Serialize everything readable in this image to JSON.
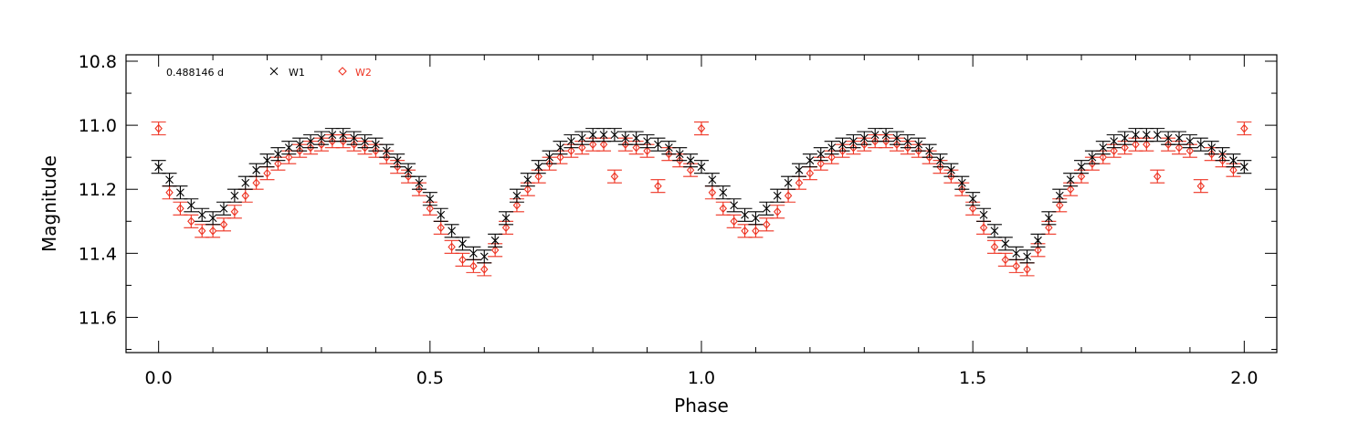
{
  "chart_data": {
    "type": "scatter",
    "xlabel": "Phase",
    "ylabel": "Magnitude",
    "xlim": [
      -0.06,
      2.06
    ],
    "ylim": [
      11.71,
      10.78
    ],
    "y_inverted": true,
    "x_ticks": [
      "0.0",
      "0.5",
      "1.0",
      "1.5",
      "2.0"
    ],
    "x_tick_values": [
      0.0,
      0.5,
      1.0,
      1.5,
      2.0
    ],
    "x_minor_step": 0.1,
    "y_ticks": [
      "10.8",
      "11.0",
      "11.2",
      "11.4",
      "11.6"
    ],
    "y_tick_values": [
      10.8,
      11.0,
      11.2,
      11.4,
      11.6
    ],
    "y_minor_step": 0.1,
    "grid": false,
    "legend_placement": "top-left",
    "period_label": "0.488146 d",
    "error_bar_halfwidth": 0.02,
    "series": [
      {
        "name": "W1",
        "marker": "x",
        "color": "#000000",
        "x": [
          0.0,
          0.02,
          0.04,
          0.06,
          0.08,
          0.1,
          0.12,
          0.14,
          0.16,
          0.18,
          0.2,
          0.22,
          0.24,
          0.26,
          0.28,
          0.3,
          0.32,
          0.34,
          0.36,
          0.38,
          0.4,
          0.42,
          0.44,
          0.46,
          0.48,
          0.5,
          0.52,
          0.54,
          0.56,
          0.58,
          0.6,
          0.62,
          0.64,
          0.66,
          0.68,
          0.7,
          0.72,
          0.74,
          0.76,
          0.78,
          0.8,
          0.82,
          0.84,
          0.86,
          0.88,
          0.9,
          0.92,
          0.94,
          0.96,
          0.98,
          1.0
        ],
        "y": [
          11.13,
          11.17,
          11.21,
          11.25,
          11.28,
          11.29,
          11.26,
          11.22,
          11.18,
          11.14,
          11.11,
          11.09,
          11.07,
          11.06,
          11.05,
          11.04,
          11.03,
          11.03,
          11.04,
          11.05,
          11.06,
          11.08,
          11.11,
          11.14,
          11.18,
          11.23,
          11.28,
          11.33,
          11.37,
          11.4,
          11.41,
          11.36,
          11.29,
          11.22,
          11.17,
          11.13,
          11.1,
          11.07,
          11.05,
          11.04,
          11.03,
          11.03,
          11.03,
          11.04,
          11.04,
          11.05,
          11.06,
          11.07,
          11.09,
          11.11,
          11.13
        ]
      },
      {
        "name": "W2",
        "marker": "diamond",
        "color": "#ee3322",
        "x": [
          0.0,
          0.02,
          0.04,
          0.06,
          0.08,
          0.1,
          0.12,
          0.14,
          0.16,
          0.18,
          0.2,
          0.22,
          0.24,
          0.26,
          0.28,
          0.3,
          0.32,
          0.34,
          0.36,
          0.38,
          0.4,
          0.42,
          0.44,
          0.46,
          0.48,
          0.5,
          0.52,
          0.54,
          0.56,
          0.58,
          0.6,
          0.62,
          0.64,
          0.66,
          0.68,
          0.7,
          0.72,
          0.74,
          0.76,
          0.78,
          0.8,
          0.82,
          0.84,
          0.86,
          0.88,
          0.9,
          0.92,
          0.94,
          0.96,
          0.98,
          1.0
        ],
        "y": [
          11.01,
          11.21,
          11.26,
          11.3,
          11.33,
          11.33,
          11.31,
          11.27,
          11.22,
          11.18,
          11.15,
          11.12,
          11.1,
          11.08,
          11.07,
          11.06,
          11.05,
          11.05,
          11.06,
          11.07,
          11.08,
          11.1,
          11.13,
          11.16,
          11.2,
          11.26,
          11.32,
          11.38,
          11.42,
          11.44,
          11.45,
          11.39,
          11.32,
          11.25,
          11.2,
          11.16,
          11.12,
          11.1,
          11.08,
          11.07,
          11.06,
          11.06,
          11.16,
          11.06,
          11.07,
          11.08,
          11.19,
          11.09,
          11.11,
          11.14,
          11.01
        ]
      }
    ]
  }
}
